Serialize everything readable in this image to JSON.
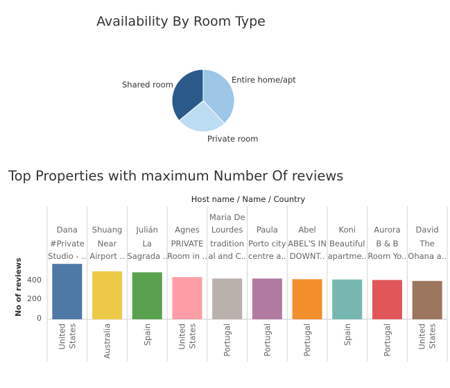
{
  "pie": {
    "title": "Availability By Room Type"
  },
  "bars": {
    "title": "Top Properties with maximum Number Of reviews",
    "header": "Host name  /  Name  /  Country"
  },
  "chart_data": [
    {
      "type": "pie",
      "title": "Availability By Room Type",
      "slices": [
        {
          "label": "Entire home/apt",
          "value": 38,
          "color": "#9dc6e7"
        },
        {
          "label": "Private room",
          "value": 26,
          "color": "#bcdcf2"
        },
        {
          "label": "Shared room",
          "value": 36,
          "color": "#2b5a8a"
        }
      ]
    },
    {
      "type": "bar",
      "title": "Top Properties with maximum Number Of reviews",
      "xlabel": "Host name  /  Name  /  Country",
      "ylabel": "No of reviews",
      "ylim": [
        0,
        630
      ],
      "yticks": [
        "0",
        "200",
        "400"
      ],
      "categories": [
        {
          "host": "Dana",
          "name": [
            "#Private",
            "Studio - .."
          ],
          "country": [
            "United",
            "States"
          ],
          "value": 578,
          "color": "#4e79a7"
        },
        {
          "host": "Shuang",
          "name": [
            "Near",
            "Airport .."
          ],
          "country": [
            "Australia"
          ],
          "value": 500,
          "color": "#edc948"
        },
        {
          "host": "Julián",
          "name": [
            "La",
            "Sagrada .."
          ],
          "country": [
            "Spain"
          ],
          "value": 490,
          "color": "#59a14f"
        },
        {
          "host": "Agnes",
          "name": [
            "PRIVATE",
            "Room in .."
          ],
          "country": [
            "United",
            "States"
          ],
          "value": 440,
          "color": "#ff9da7"
        },
        {
          "host": "Maria De\nLourdes",
          "name": [
            "tradition",
            "al and C.."
          ],
          "country": [
            "Portugal"
          ],
          "value": 425,
          "color": "#bab0ac"
        },
        {
          "host": "Paula",
          "name": [
            "Porto city",
            "centre a.."
          ],
          "country": [
            "Portugal"
          ],
          "value": 425,
          "color": "#b07aa1"
        },
        {
          "host": "Abel",
          "name": [
            "ABEL'S IN",
            "DOWNT.."
          ],
          "country": [
            "Portugal"
          ],
          "value": 418,
          "color": "#f28e2b"
        },
        {
          "host": "Koni",
          "name": [
            "Beautiful",
            "apartme.."
          ],
          "country": [
            "Spain"
          ],
          "value": 415,
          "color": "#76b7b2"
        },
        {
          "host": "Aurora",
          "name": [
            "B & B",
            "Room Yo.."
          ],
          "country": [
            "Portugal"
          ],
          "value": 410,
          "color": "#e15759"
        },
        {
          "host": "David",
          "name": [
            "The",
            "Ohana a.."
          ],
          "country": [
            "United",
            "States"
          ],
          "value": 400,
          "color": "#9c755f"
        }
      ]
    }
  ]
}
